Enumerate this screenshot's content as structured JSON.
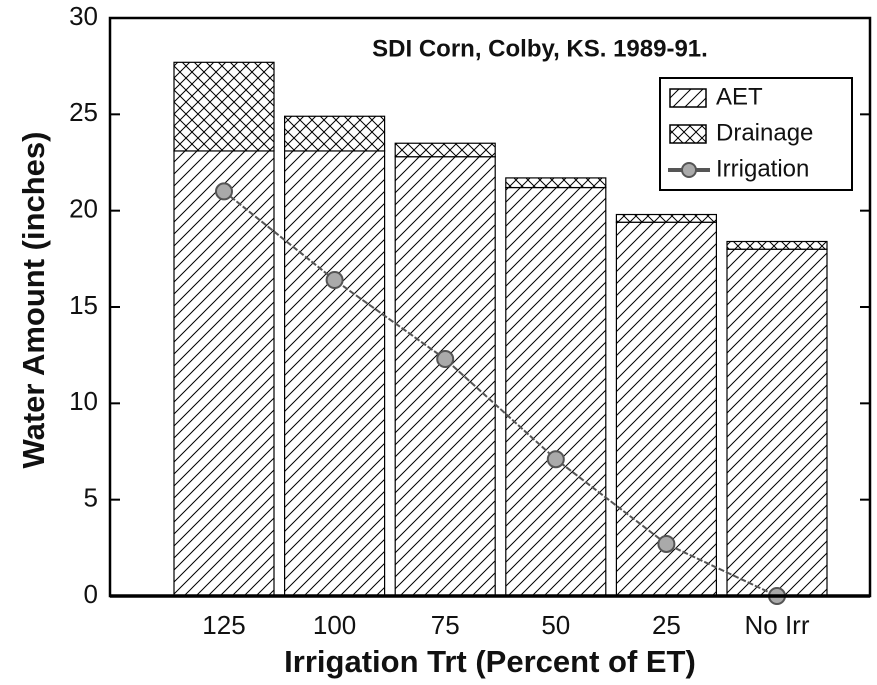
{
  "chart_data": {
    "type": "bar",
    "stacked": true,
    "title": "SDI Corn, Colby, KS. 1989-91.",
    "xlabel": "Irrigation Trt (Percent of ET)",
    "ylabel": "Water Amount (inches)",
    "categories": [
      "125",
      "100",
      "75",
      "50",
      "25",
      "No Irr"
    ],
    "series": [
      {
        "name": "AET",
        "type": "bar",
        "hatch": "diagonal",
        "color": "#000000",
        "values": [
          23.1,
          23.1,
          22.8,
          21.2,
          19.4,
          18.0
        ]
      },
      {
        "name": "Drainage",
        "type": "bar",
        "hatch": "cross",
        "color": "#000000",
        "values": [
          4.6,
          1.8,
          0.7,
          0.5,
          0.4,
          0.4
        ]
      },
      {
        "name": "Irrigation",
        "type": "line",
        "color": "#555555",
        "values": [
          21.0,
          16.4,
          12.3,
          7.1,
          2.7,
          0.0
        ]
      }
    ],
    "ylim": [
      0,
      30
    ],
    "yticks": [
      0,
      5,
      10,
      15,
      20,
      25,
      30
    ],
    "legend": "upper right"
  }
}
